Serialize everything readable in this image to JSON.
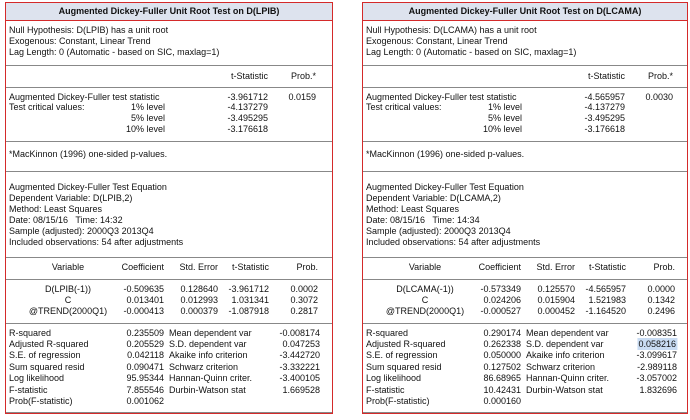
{
  "panels": [
    {
      "title": "Augmented Dickey-Fuller Unit Root Test on D(LPIB)",
      "header_lines": [
        "Null Hypothesis: D(LPIB) has a unit root",
        "Exogenous: Constant, Linear Trend",
        "Lag Length: 0 (Automatic - based on SIC, maxlag=1)"
      ],
      "test": {
        "columns": [
          "t-Statistic",
          "Prob.*"
        ],
        "adf_row": {
          "label": "Augmented Dickey-Fuller test statistic",
          "t": "-3.961712",
          "prob": "0.0159"
        },
        "critical_label": "Test critical values:",
        "levels": [
          {
            "level": "1% level",
            "value": "-4.137279"
          },
          {
            "level": "5% level",
            "value": "-3.495295"
          },
          {
            "level": "10% level",
            "value": "-3.176618"
          }
        ]
      },
      "note": "*MacKinnon (1996) one-sided p-values.",
      "equation_lines": [
        "Augmented Dickey-Fuller Test Equation",
        "Dependent Variable: D(LPIB,2)",
        "Method: Least Squares",
        "Date: 08/15/16   Time: 14:32",
        "Sample (adjusted): 2000Q3 2013Q4",
        "Included observations: 54 after adjustments"
      ],
      "coef_table": {
        "columns": [
          "Variable",
          "Coefficient",
          "Std. Error",
          "t-Statistic",
          "Prob."
        ],
        "rows": [
          [
            "D(LPIB(-1))",
            "-0.509635",
            "0.128640",
            "-3.961712",
            "0.0002"
          ],
          [
            "C",
            "0.013401",
            "0.012993",
            "1.031341",
            "0.3072"
          ],
          [
            "@TREND(2000Q1)",
            "-0.000413",
            "0.000379",
            "-1.087918",
            "0.2817"
          ]
        ]
      },
      "stats": [
        [
          "R-squared",
          "0.235509",
          "Mean dependent var",
          "-0.008174"
        ],
        [
          "Adjusted R-squared",
          "0.205529",
          "S.D. dependent var",
          "0.047253"
        ],
        [
          "S.E. of regression",
          "0.042118",
          "Akaike info criterion",
          "-3.442720"
        ],
        [
          "Sum squared resid",
          "0.090471",
          "Schwarz criterion",
          "-3.332221"
        ],
        [
          "Log likelihood",
          "95.95344",
          "Hannan-Quinn criter.",
          "-3.400105"
        ],
        [
          "F-statistic",
          "7.855546",
          "Durbin-Watson stat",
          "1.669528"
        ],
        [
          "Prob(F-statistic)",
          "0.001062"
        ]
      ]
    },
    {
      "title": "Augmented Dickey-Fuller Unit Root Test on D(LCAMA)",
      "header_lines": [
        "Null Hypothesis: D(LCAMA) has a unit root",
        "Exogenous: Constant, Linear Trend",
        "Lag Length: 0 (Automatic - based on SIC, maxlag=1)"
      ],
      "test": {
        "columns": [
          "t-Statistic",
          "Prob.*"
        ],
        "adf_row": {
          "label": "Augmented Dickey-Fuller test statistic",
          "t": "-4.565957",
          "prob": "0.0030"
        },
        "critical_label": "Test critical values:",
        "levels": [
          {
            "level": "1% level",
            "value": "-4.137279"
          },
          {
            "level": "5% level",
            "value": "-3.495295"
          },
          {
            "level": "10% level",
            "value": "-3.176618"
          }
        ]
      },
      "note": "*MacKinnon (1996) one-sided p-values.",
      "equation_lines": [
        "Augmented Dickey-Fuller Test Equation",
        "Dependent Variable: D(LCAMA,2)",
        "Method: Least Squares",
        "Date: 08/15/16   Time: 14:34",
        "Sample (adjusted): 2000Q3 2013Q4",
        "Included observations: 54 after adjustments"
      ],
      "coef_table": {
        "columns": [
          "Variable",
          "Coefficient",
          "Std. Error",
          "t-Statistic",
          "Prob."
        ],
        "rows": [
          [
            "D(LCAMA(-1))",
            "-0.573349",
            "0.125570",
            "-4.565957",
            "0.0000"
          ],
          [
            "C",
            "0.024206",
            "0.015904",
            "1.521983",
            "0.1342"
          ],
          [
            "@TREND(2000Q1)",
            "-0.000527",
            "0.000452",
            "-1.164520",
            "0.2496"
          ]
        ]
      },
      "stats": [
        [
          "R-squared",
          "0.290174",
          "Mean dependent var",
          "-0.008351"
        ],
        [
          "Adjusted R-squared",
          "0.262338",
          "S.D. dependent var",
          "0.058216"
        ],
        [
          "S.E. of regression",
          "0.050000",
          "Akaike info criterion",
          "-3.099617"
        ],
        [
          "Sum squared resid",
          "0.127502",
          "Schwarz criterion",
          "-2.989118"
        ],
        [
          "Log likelihood",
          "86.68965",
          "Hannan-Quinn criter.",
          "-3.057002"
        ],
        [
          "F-statistic",
          "10.42431",
          "Durbin-Watson stat",
          "1.832696"
        ],
        [
          "Prob(F-statistic)",
          "0.000160"
        ]
      ]
    }
  ]
}
